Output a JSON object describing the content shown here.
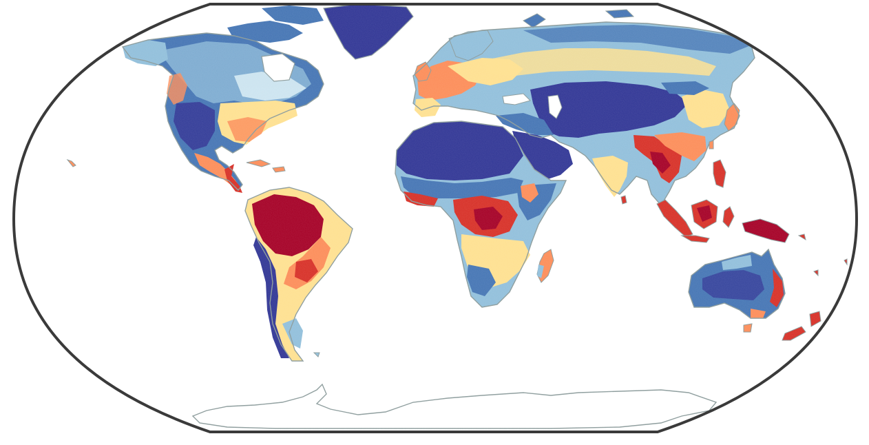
{
  "map": {
    "projection": "Robinson",
    "frame_color": "#3a3a3a",
    "coastline_color": "#8a9a9a",
    "ocean_color": "#ffffff",
    "palette": {
      "very_low": "#313695",
      "low": "#4575b4",
      "mid_low": "#91bfdb",
      "mid": "#e0f3f8",
      "mid_high": "#fee090",
      "high": "#fc8d59",
      "very_high": "#d73027",
      "extreme": "#a50026"
    }
  }
}
